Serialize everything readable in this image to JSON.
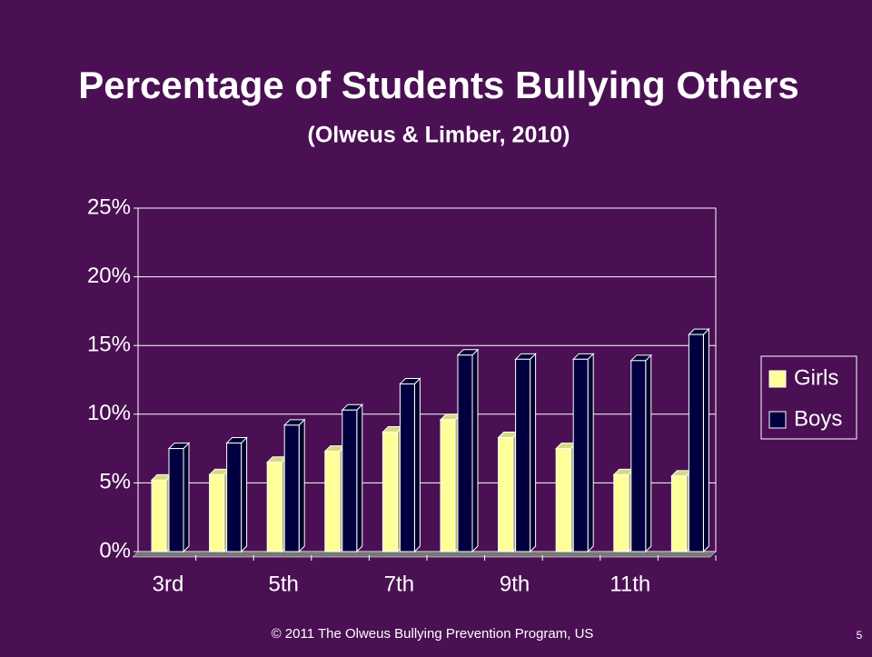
{
  "chart_data": {
    "type": "bar3d",
    "title": "Percentage of Students Bullying Others",
    "subtitle": "(Olweus & Limber, 2010)",
    "categories": [
      "3rd",
      null,
      "5th",
      null,
      "7th",
      null,
      "9th",
      null,
      "11th",
      null
    ],
    "series": [
      {
        "name": "Girls",
        "color": "#ffff99",
        "values": [
          5.2,
          5.6,
          6.5,
          7.3,
          8.7,
          9.6,
          8.3,
          7.5,
          5.6,
          5.5
        ]
      },
      {
        "name": "Boys",
        "color": "#000040",
        "values": [
          7.5,
          7.9,
          9.2,
          10.3,
          12.2,
          14.3,
          14.0,
          14.0,
          13.9,
          15.8
        ]
      }
    ],
    "ylim": [
      0,
      25
    ],
    "yticks": [
      {
        "value": 0,
        "label": "0%"
      },
      {
        "value": 5,
        "label": "5%"
      },
      {
        "value": 10,
        "label": "10%"
      },
      {
        "value": 15,
        "label": "15%"
      },
      {
        "value": 20,
        "label": "20%"
      },
      {
        "value": 25,
        "label": "25%"
      }
    ],
    "grid": true,
    "legend": "right"
  },
  "footer": "© 2011 The Olweus Bullying Prevention Program, US",
  "page_number": "5"
}
